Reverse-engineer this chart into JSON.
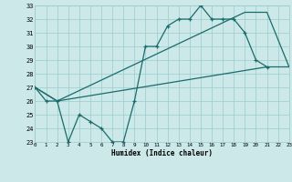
{
  "xlabel": "Humidex (Indice chaleur)",
  "bg_color": "#cce8e8",
  "grid_color": "#99cccc",
  "line_color": "#1a6b6b",
  "jagged": {
    "x": [
      0,
      1,
      2,
      3,
      4,
      5,
      6,
      7,
      8,
      9,
      10,
      11,
      12,
      13,
      14,
      15,
      16,
      17,
      18,
      19,
      20,
      21
    ],
    "y": [
      27,
      26,
      26,
      23,
      25,
      24.5,
      24,
      23,
      23,
      26,
      30,
      30,
      31.5,
      32,
      32,
      33,
      32,
      32,
      32,
      31,
      29,
      28.5
    ]
  },
  "upper_line": {
    "x": [
      0,
      2,
      19,
      21,
      23
    ],
    "y": [
      27,
      26,
      32.5,
      32.5,
      28.5
    ]
  },
  "lower_line": {
    "x": [
      0,
      2,
      21,
      23
    ],
    "y": [
      27,
      26,
      28.5,
      28.5
    ]
  },
  "xlim": [
    0,
    23
  ],
  "ylim": [
    23,
    33
  ],
  "yticks": [
    23,
    24,
    25,
    26,
    27,
    28,
    29,
    30,
    31,
    32,
    33
  ],
  "xticks": [
    0,
    1,
    2,
    3,
    4,
    5,
    6,
    7,
    8,
    9,
    10,
    11,
    12,
    13,
    14,
    15,
    16,
    17,
    18,
    19,
    20,
    21,
    22,
    23
  ]
}
